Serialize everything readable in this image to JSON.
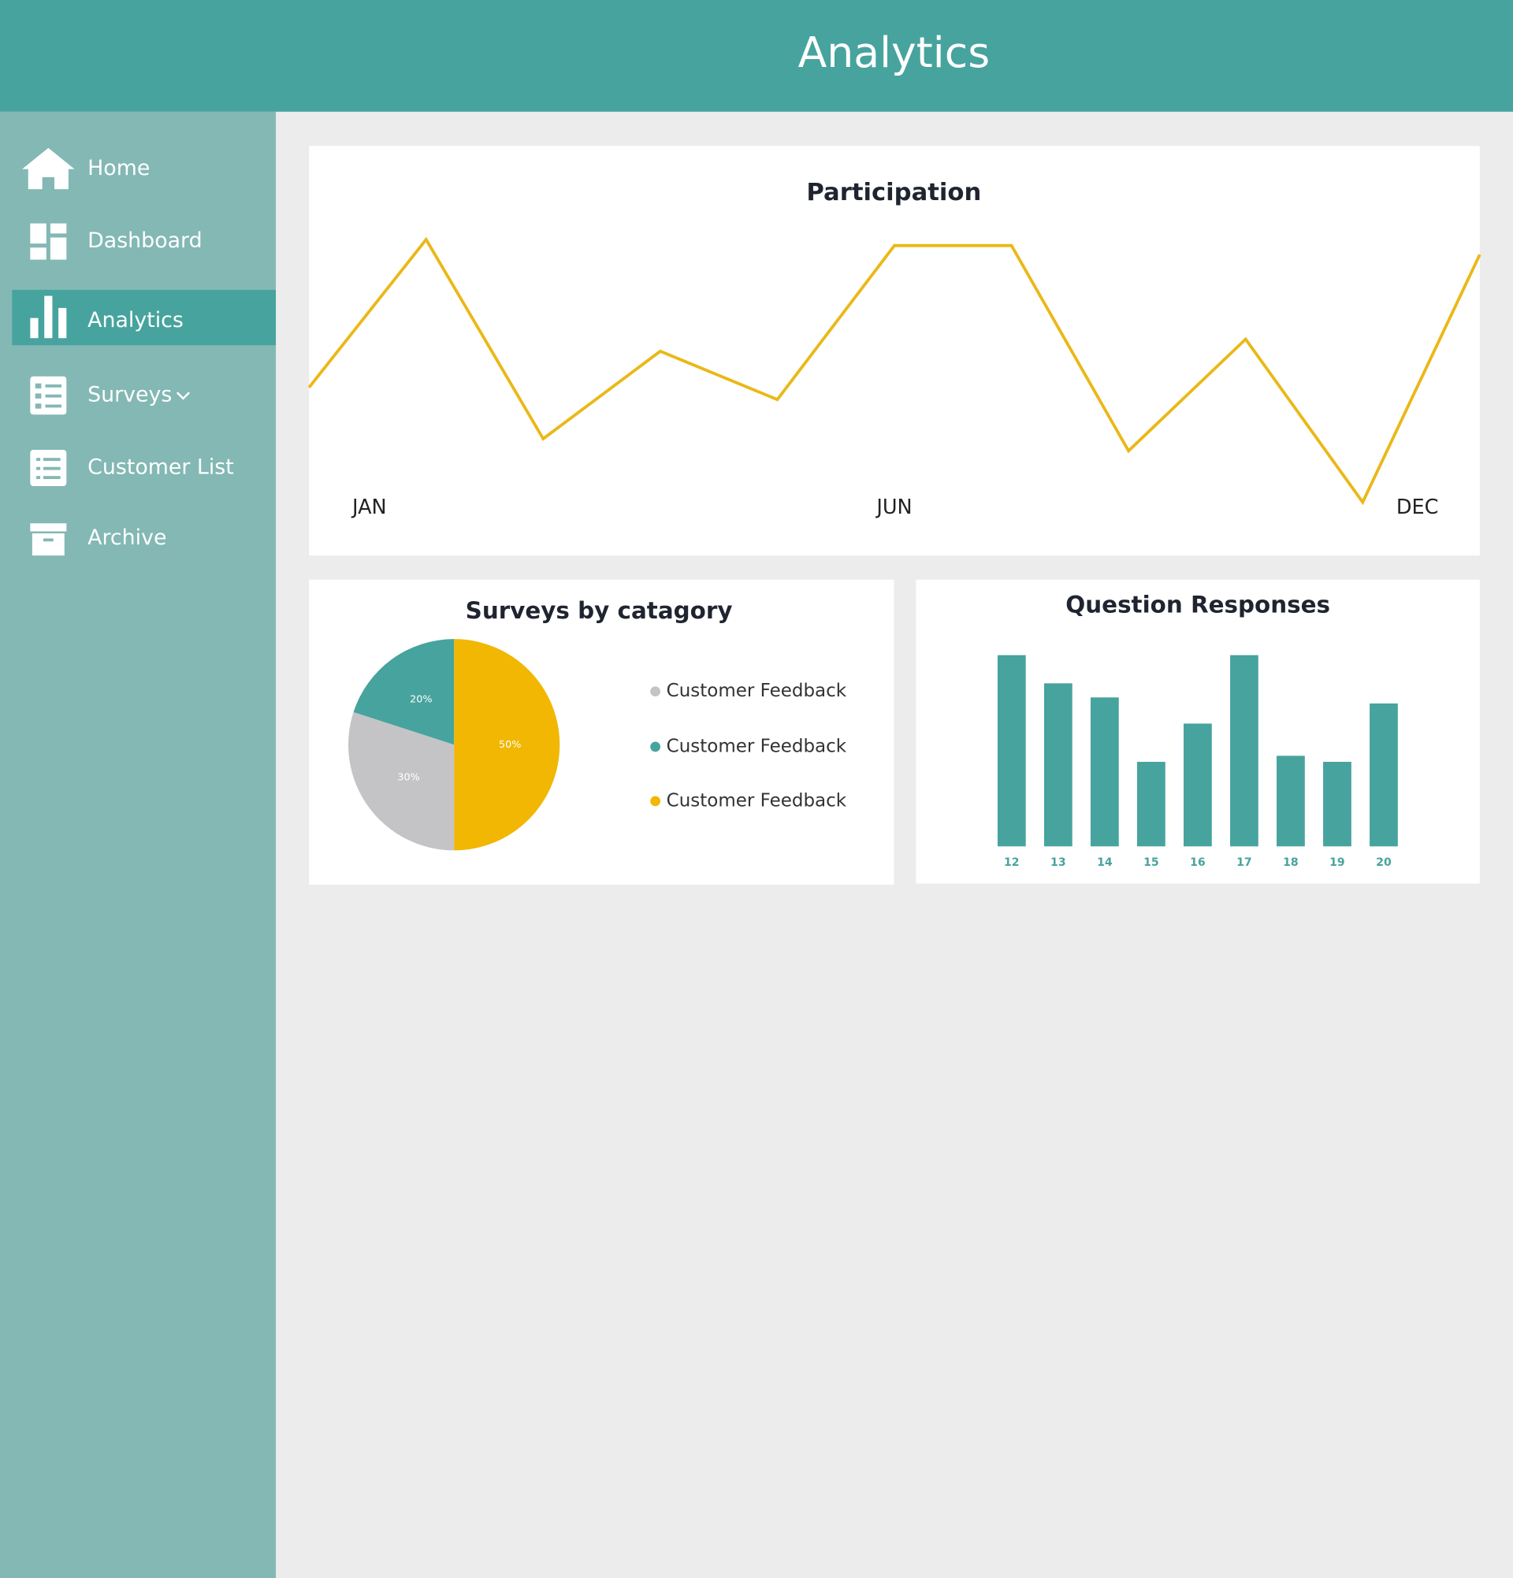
{
  "header": {
    "title": "Analytics"
  },
  "sidebar": {
    "items": [
      "Home",
      "Dashboard",
      "Analytics",
      "Surveys",
      "Customer List",
      "Archive"
    ],
    "active": 2
  },
  "chart_data": [
    {
      "type": "line",
      "title": "Participation",
      "categories": [
        "JAN",
        null,
        null,
        null,
        null,
        "JUN",
        null,
        null,
        null,
        null,
        "DEC"
      ],
      "values": [
        45,
        94,
        28,
        57,
        41,
        92,
        92,
        24,
        61,
        7,
        89
      ],
      "color": "#eab818",
      "ylim": [
        0,
        100
      ]
    },
    {
      "type": "pie",
      "title": "Surveys by catagory",
      "categories": [
        "Customer Feedback",
        "Customer Feedback",
        "Customer Feedback"
      ],
      "values": [
        30,
        20,
        50
      ],
      "value_labels": [
        "30%",
        "20%",
        "50%"
      ],
      "colors": [
        "#c4c4c6",
        "#47a39e",
        "#f1b702"
      ]
    },
    {
      "type": "bar",
      "title": "Question Responses",
      "categories": [
        "12",
        "13",
        "14",
        "15",
        "16",
        "17",
        "18",
        "19",
        "20"
      ],
      "values": [
        95,
        81,
        74,
        42,
        61,
        95,
        45,
        42,
        71
      ],
      "color": "#47a39e",
      "ylim": [
        0,
        100
      ]
    }
  ]
}
